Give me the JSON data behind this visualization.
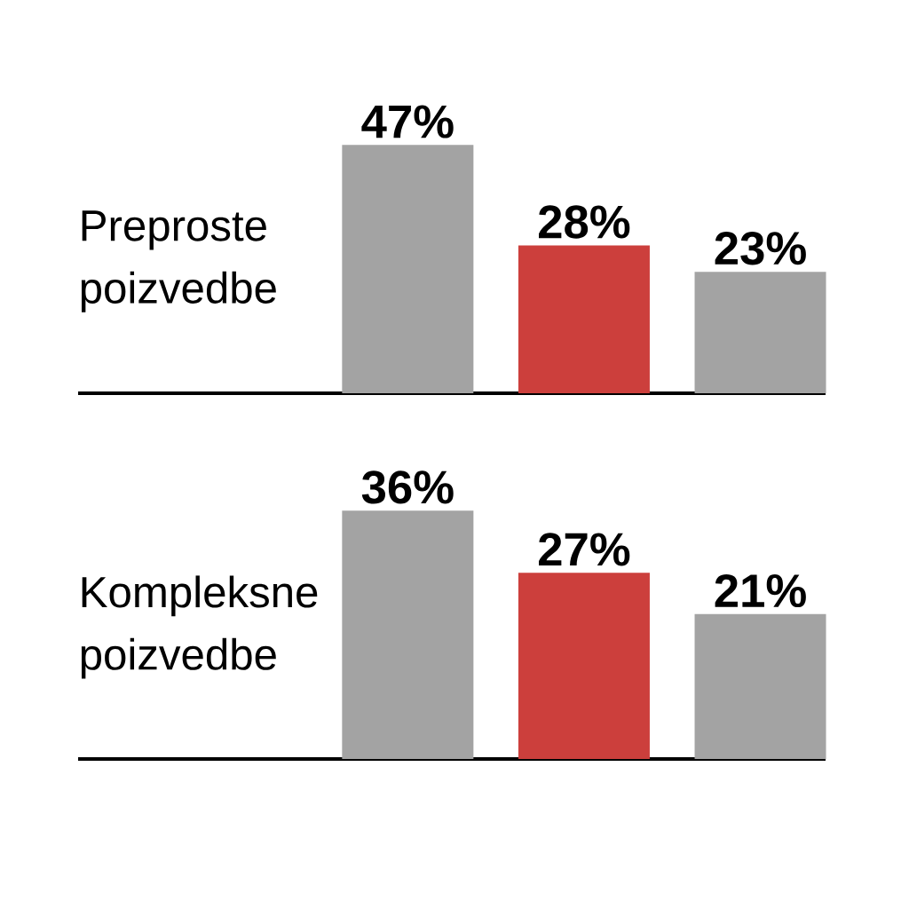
{
  "chart_data": [
    {
      "type": "bar",
      "title": "Preproste poizvedbe",
      "categories": [
        null,
        null,
        null
      ],
      "values": [
        47,
        28,
        23
      ],
      "colors": [
        "#a3a3a3",
        "#cc3f3c",
        "#a3a3a3"
      ],
      "value_labels": [
        "47%",
        "28%",
        "23%"
      ]
    },
    {
      "type": "bar",
      "title": "Kompleksne poizvedbe",
      "categories": [
        null,
        null,
        null
      ],
      "values": [
        36,
        27,
        21
      ],
      "colors": [
        "#a3a3a3",
        "#cc3f3c",
        "#a3a3a3"
      ],
      "value_labels": [
        "36%",
        "27%",
        "21%"
      ]
    }
  ]
}
